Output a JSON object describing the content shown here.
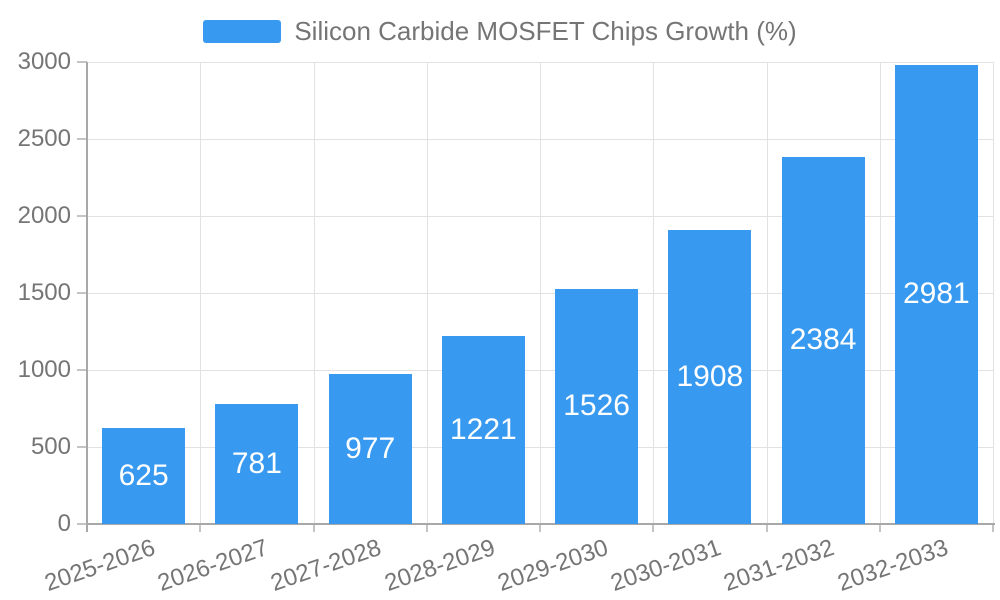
{
  "legend": {
    "label": "Silicon Carbide MOSFET Chips Growth (%)"
  },
  "chart_data": {
    "type": "bar",
    "title": "",
    "xlabel": "",
    "ylabel": "",
    "categories": [
      "2025-2026",
      "2026-2027",
      "2027-2028",
      "2028-2029",
      "2029-2030",
      "2030-2031",
      "2031-2032",
      "2032-2033"
    ],
    "series": [
      {
        "name": "Silicon Carbide MOSFET Chips Growth (%)",
        "values": [
          625,
          781,
          977,
          1221,
          1526,
          1908,
          2384,
          2981
        ]
      }
    ],
    "value_labels_shown": true,
    "value_label_position": "inside-center",
    "ylim": [
      0,
      3000
    ],
    "yticks": [
      0,
      500,
      1000,
      1500,
      2000,
      2500,
      3000
    ],
    "grid": true,
    "legend_position": "top-center",
    "x_label_rotation_deg": -19
  },
  "colors": {
    "bar": "#3899F0",
    "bar_value_label": "#ffffff",
    "axis_line": "#a8a8a8",
    "gridline": "#e2e2e2",
    "tick": "#c4c4c4",
    "axis_text": "#757575",
    "background": "#ffffff"
  }
}
